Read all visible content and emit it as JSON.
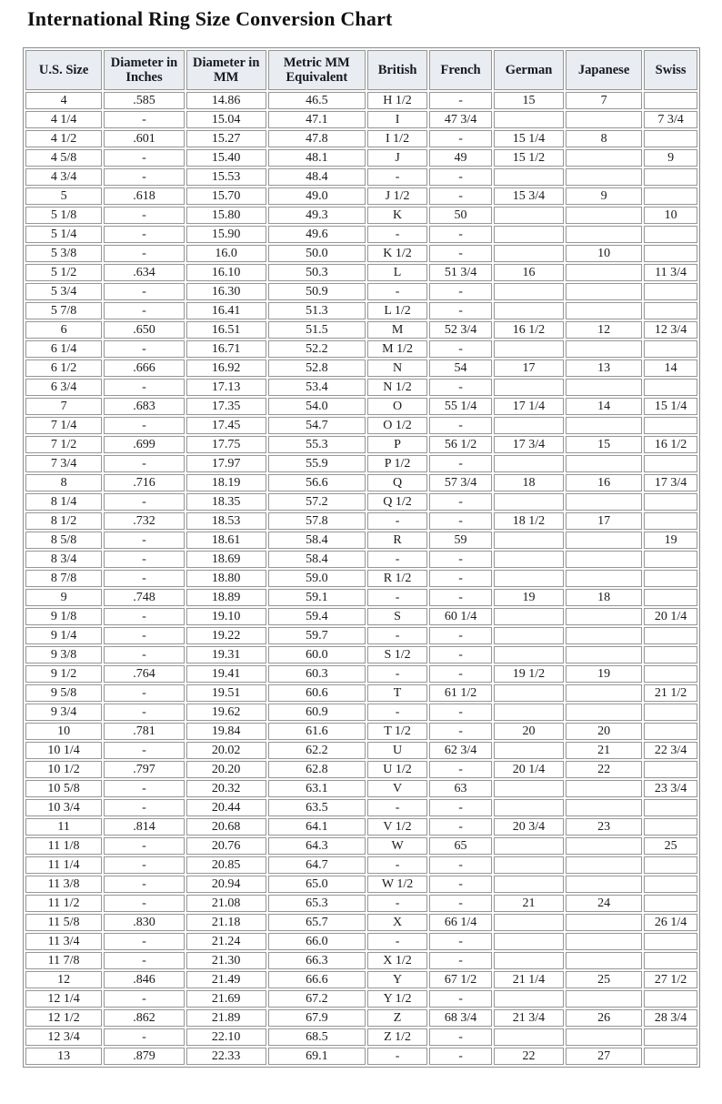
{
  "page": {
    "title": "International Ring Size Conversion Chart"
  },
  "table": {
    "columns": [
      "U.S. Size",
      "Diameter in Inches",
      "Diameter in MM",
      "Metric MM Equivalent",
      "British",
      "French",
      "German",
      "Japanese",
      "Swiss"
    ],
    "rows": [
      [
        "4",
        ".585",
        "14.86",
        "46.5",
        "H 1/2",
        "-",
        "15",
        "7",
        ""
      ],
      [
        "4 1/4",
        "-",
        "15.04",
        "47.1",
        "I",
        "47 3/4",
        "",
        "",
        "7 3/4"
      ],
      [
        "4 1/2",
        ".601",
        "15.27",
        "47.8",
        "I 1/2",
        "-",
        "15 1/4",
        "8",
        ""
      ],
      [
        "4 5/8",
        "-",
        "15.40",
        "48.1",
        "J",
        "49",
        "15 1/2",
        "",
        "9"
      ],
      [
        "4 3/4",
        "-",
        "15.53",
        "48.4",
        "-",
        "-",
        "",
        "",
        ""
      ],
      [
        "5",
        ".618",
        "15.70",
        "49.0",
        "J 1/2",
        "-",
        "15 3/4",
        "9",
        ""
      ],
      [
        "5 1/8",
        "-",
        "15.80",
        "49.3",
        "K",
        "50",
        "",
        "",
        "10"
      ],
      [
        "5 1/4",
        "-",
        "15.90",
        "49.6",
        "-",
        "-",
        "",
        "",
        ""
      ],
      [
        "5 3/8",
        "-",
        "16.0",
        "50.0",
        "K 1/2",
        "-",
        "",
        "10",
        ""
      ],
      [
        "5 1/2",
        ".634",
        "16.10",
        "50.3",
        "L",
        "51 3/4",
        "16",
        "",
        "11 3/4"
      ],
      [
        "5 3/4",
        "-",
        "16.30",
        "50.9",
        "-",
        "-",
        "",
        "",
        ""
      ],
      [
        "5 7/8",
        "-",
        "16.41",
        "51.3",
        "L 1/2",
        "-",
        "",
        "",
        ""
      ],
      [
        "6",
        ".650",
        "16.51",
        "51.5",
        "M",
        "52 3/4",
        "16 1/2",
        "12",
        "12 3/4"
      ],
      [
        "6 1/4",
        "-",
        "16.71",
        "52.2",
        "M 1/2",
        "-",
        "",
        "",
        ""
      ],
      [
        "6 1/2",
        ".666",
        "16.92",
        "52.8",
        "N",
        "54",
        "17",
        "13",
        "14"
      ],
      [
        "6 3/4",
        "-",
        "17.13",
        "53.4",
        "N 1/2",
        "-",
        "",
        "",
        ""
      ],
      [
        "7",
        ".683",
        "17.35",
        "54.0",
        "O",
        "55 1/4",
        "17 1/4",
        "14",
        "15 1/4"
      ],
      [
        "7 1/4",
        "-",
        "17.45",
        "54.7",
        "O 1/2",
        "-",
        "",
        "",
        ""
      ],
      [
        "7 1/2",
        ".699",
        "17.75",
        "55.3",
        "P",
        "56 1/2",
        "17 3/4",
        "15",
        "16 1/2"
      ],
      [
        "7 3/4",
        "-",
        "17.97",
        "55.9",
        "P 1/2",
        "-",
        "",
        "",
        ""
      ],
      [
        "8",
        ".716",
        "18.19",
        "56.6",
        "Q",
        "57 3/4",
        "18",
        "16",
        "17 3/4"
      ],
      [
        "8 1/4",
        "-",
        "18.35",
        "57.2",
        "Q 1/2",
        "-",
        "",
        "",
        ""
      ],
      [
        "8 1/2",
        ".732",
        "18.53",
        "57.8",
        "-",
        "-",
        "18 1/2",
        "17",
        ""
      ],
      [
        "8 5/8",
        "-",
        "18.61",
        "58.4",
        "R",
        "59",
        "",
        "",
        "19"
      ],
      [
        "8 3/4",
        "-",
        "18.69",
        "58.4",
        "-",
        "-",
        "",
        "",
        ""
      ],
      [
        "8 7/8",
        "-",
        "18.80",
        "59.0",
        "R 1/2",
        "-",
        "",
        "",
        ""
      ],
      [
        "9",
        ".748",
        "18.89",
        "59.1",
        "-",
        "-",
        "19",
        "18",
        ""
      ],
      [
        "9 1/8",
        "-",
        "19.10",
        "59.4",
        "S",
        "60 1/4",
        "",
        "",
        "20 1/4"
      ],
      [
        "9 1/4",
        "-",
        "19.22",
        "59.7",
        "-",
        "-",
        "",
        "",
        ""
      ],
      [
        "9 3/8",
        "-",
        "19.31",
        "60.0",
        "S 1/2",
        "-",
        "",
        "",
        ""
      ],
      [
        "9 1/2",
        ".764",
        "19.41",
        "60.3",
        "-",
        "-",
        "19 1/2",
        "19",
        ""
      ],
      [
        "9 5/8",
        "-",
        "19.51",
        "60.6",
        "T",
        "61 1/2",
        "",
        "",
        "21 1/2"
      ],
      [
        "9 3/4",
        "-",
        "19.62",
        "60.9",
        "-",
        "-",
        "",
        "",
        ""
      ],
      [
        "10",
        ".781",
        "19.84",
        "61.6",
        "T 1/2",
        "-",
        "20",
        "20",
        ""
      ],
      [
        "10 1/4",
        "-",
        "20.02",
        "62.2",
        "U",
        "62 3/4",
        "",
        "21",
        "22 3/4"
      ],
      [
        "10 1/2",
        ".797",
        "20.20",
        "62.8",
        "U 1/2",
        "-",
        "20 1/4",
        "22",
        ""
      ],
      [
        "10 5/8",
        "-",
        "20.32",
        "63.1",
        "V",
        "63",
        "",
        "",
        "23 3/4"
      ],
      [
        "10 3/4",
        "-",
        "20.44",
        "63.5",
        "-",
        "-",
        "",
        "",
        ""
      ],
      [
        "11",
        ".814",
        "20.68",
        "64.1",
        "V 1/2",
        "-",
        "20 3/4",
        "23",
        ""
      ],
      [
        "11 1/8",
        "-",
        "20.76",
        "64.3",
        "W",
        "65",
        "",
        "",
        "25"
      ],
      [
        "11 1/4",
        "-",
        "20.85",
        "64.7",
        "-",
        "-",
        "",
        "",
        ""
      ],
      [
        "11 3/8",
        "-",
        "20.94",
        "65.0",
        "W 1/2",
        "-",
        "",
        "",
        ""
      ],
      [
        "11 1/2",
        "-",
        "21.08",
        "65.3",
        "-",
        "-",
        "21",
        "24",
        ""
      ],
      [
        "11 5/8",
        ".830",
        "21.18",
        "65.7",
        "X",
        "66 1/4",
        "",
        "",
        "26 1/4"
      ],
      [
        "11 3/4",
        "-",
        "21.24",
        "66.0",
        "-",
        "-",
        "",
        "",
        ""
      ],
      [
        "11 7/8",
        "-",
        "21.30",
        "66.3",
        "X 1/2",
        "-",
        "",
        "",
        ""
      ],
      [
        "12",
        ".846",
        "21.49",
        "66.6",
        "Y",
        "67 1/2",
        "21 1/4",
        "25",
        "27 1/2"
      ],
      [
        "12 1/4",
        "-",
        "21.69",
        "67.2",
        "Y 1/2",
        "-",
        "",
        "",
        ""
      ],
      [
        "12 1/2",
        ".862",
        "21.89",
        "67.9",
        "Z",
        "68 3/4",
        "21 3/4",
        "26",
        "28 3/4"
      ],
      [
        "12 3/4",
        "-",
        "22.10",
        "68.5",
        "Z 1/2",
        "-",
        "",
        "",
        ""
      ],
      [
        "13",
        ".879",
        "22.33",
        "69.1",
        "-",
        "-",
        "22",
        "27",
        ""
      ]
    ]
  }
}
